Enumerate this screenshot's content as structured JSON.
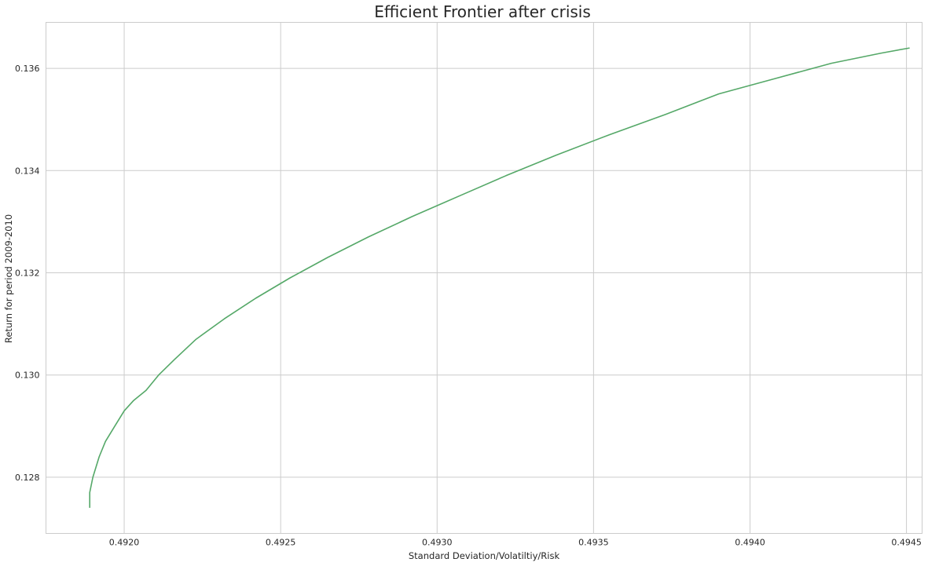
{
  "chart_data": {
    "type": "line",
    "title": "Efficient Frontier after crisis",
    "xlabel": "Standard Deviation/Volatiltiy/Risk",
    "ylabel": "Return for period 2009-2010",
    "xlim": [
      0.49175,
      0.49455
    ],
    "ylim": [
      0.1269,
      0.1369
    ],
    "xticks": [
      0.492,
      0.4925,
      0.493,
      0.4935,
      0.494,
      0.4945
    ],
    "xtick_labels": [
      "0.4920",
      "0.4925",
      "0.4930",
      "0.4935",
      "0.4940",
      "0.4945"
    ],
    "yticks": [
      0.128,
      0.13,
      0.132,
      0.134,
      0.136
    ],
    "ytick_labels": [
      "0.128",
      "0.130",
      "0.132",
      "0.134",
      "0.136"
    ],
    "grid": true,
    "series": [
      {
        "color": "#55a868",
        "x": [
          0.49189,
          0.49189,
          0.4919,
          0.49192,
          0.49194,
          0.49197,
          0.492,
          0.49203,
          0.49207,
          0.49211,
          0.49216,
          0.49223,
          0.49232,
          0.49242,
          0.49253,
          0.49265,
          0.49278,
          0.49292,
          0.49307,
          0.49322,
          0.49338,
          0.49355,
          0.49373,
          0.4939,
          0.49408,
          0.49426,
          0.49442,
          0.49451
        ],
        "y": [
          0.1274,
          0.1277,
          0.128,
          0.1284,
          0.1287,
          0.129,
          0.1293,
          0.1295,
          0.1297,
          0.13,
          0.1303,
          0.1307,
          0.1311,
          0.1315,
          0.1319,
          0.1323,
          0.1327,
          0.1331,
          0.1335,
          0.1339,
          0.1343,
          0.1347,
          0.1351,
          0.1355,
          0.1358,
          0.1361,
          0.1363,
          0.1364
        ]
      }
    ]
  }
}
